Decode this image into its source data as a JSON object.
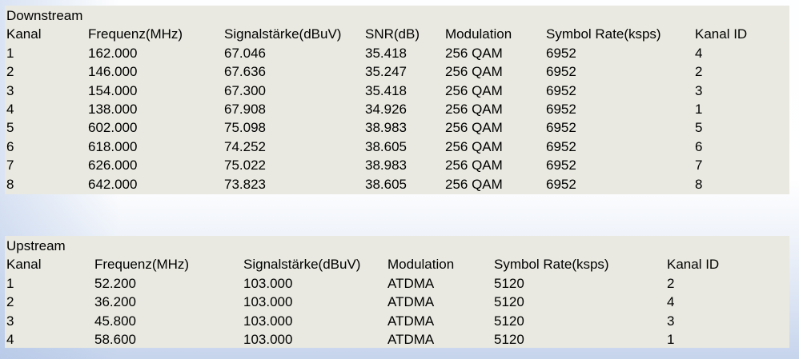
{
  "colors": {
    "panel_bg": "#e9e9e1",
    "page_bg_bottom": "#c6d4ec",
    "text": "#000000"
  },
  "downstream": {
    "title": "Downstream",
    "headers": [
      "Kanal",
      "Frequenz(MHz)",
      "Signalstärke(dBuV)",
      "SNR(dB)",
      "Modulation",
      "Symbol Rate(ksps)",
      "Kanal ID"
    ],
    "rows": [
      [
        "1",
        "162.000",
        "67.046",
        "35.418",
        "256 QAM",
        "6952",
        "4"
      ],
      [
        "2",
        "146.000",
        "67.636",
        "35.247",
        "256 QAM",
        "6952",
        "2"
      ],
      [
        "3",
        "154.000",
        "67.300",
        "35.418",
        "256 QAM",
        "6952",
        "3"
      ],
      [
        "4",
        "138.000",
        "67.908",
        "34.926",
        "256 QAM",
        "6952",
        "1"
      ],
      [
        "5",
        "602.000",
        "75.098",
        "38.983",
        "256 QAM",
        "6952",
        "5"
      ],
      [
        "6",
        "618.000",
        "74.252",
        "38.605",
        "256 QAM",
        "6952",
        "6"
      ],
      [
        "7",
        "626.000",
        "75.022",
        "38.983",
        "256 QAM",
        "6952",
        "7"
      ],
      [
        "8",
        "642.000",
        "73.823",
        "38.605",
        "256 QAM",
        "6952",
        "8"
      ]
    ]
  },
  "upstream": {
    "title": "Upstream",
    "headers": [
      "Kanal",
      "Frequenz(MHz)",
      "Signalstärke(dBuV)",
      "Modulation",
      "Symbol Rate(ksps)",
      "Kanal ID"
    ],
    "rows": [
      [
        "1",
        "52.200",
        "103.000",
        "ATDMA",
        "5120",
        "2"
      ],
      [
        "2",
        "36.200",
        "103.000",
        "ATDMA",
        "5120",
        "4"
      ],
      [
        "3",
        "45.800",
        "103.000",
        "ATDMA",
        "5120",
        "3"
      ],
      [
        "4",
        "58.600",
        "103.000",
        "ATDMA",
        "5120",
        "1"
      ]
    ]
  }
}
